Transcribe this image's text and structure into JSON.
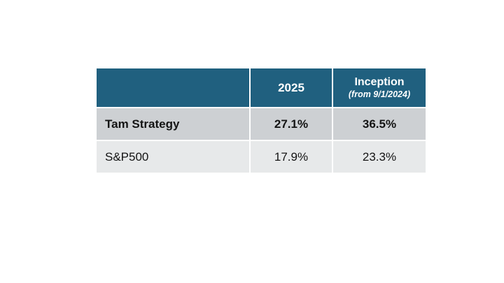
{
  "chart_data": {
    "type": "table",
    "header": {
      "col1": "",
      "col2": "2025",
      "col3_title": "Inception",
      "col3_sub": "(from 9/1/2024)"
    },
    "rows": [
      {
        "label": "Tam Strategy",
        "y2025": "27.1%",
        "inception": "36.5%"
      },
      {
        "label": "S&P500",
        "y2025": "17.9%",
        "inception": "23.3%"
      }
    ]
  },
  "colors": {
    "page_bg": "#FFFFFF",
    "header_bg": "#20607F",
    "header_text": "#FFFFFF",
    "row1_bg": "#CDD0D3",
    "row2_bg": "#E7E9EA",
    "body_text": "#141414"
  }
}
